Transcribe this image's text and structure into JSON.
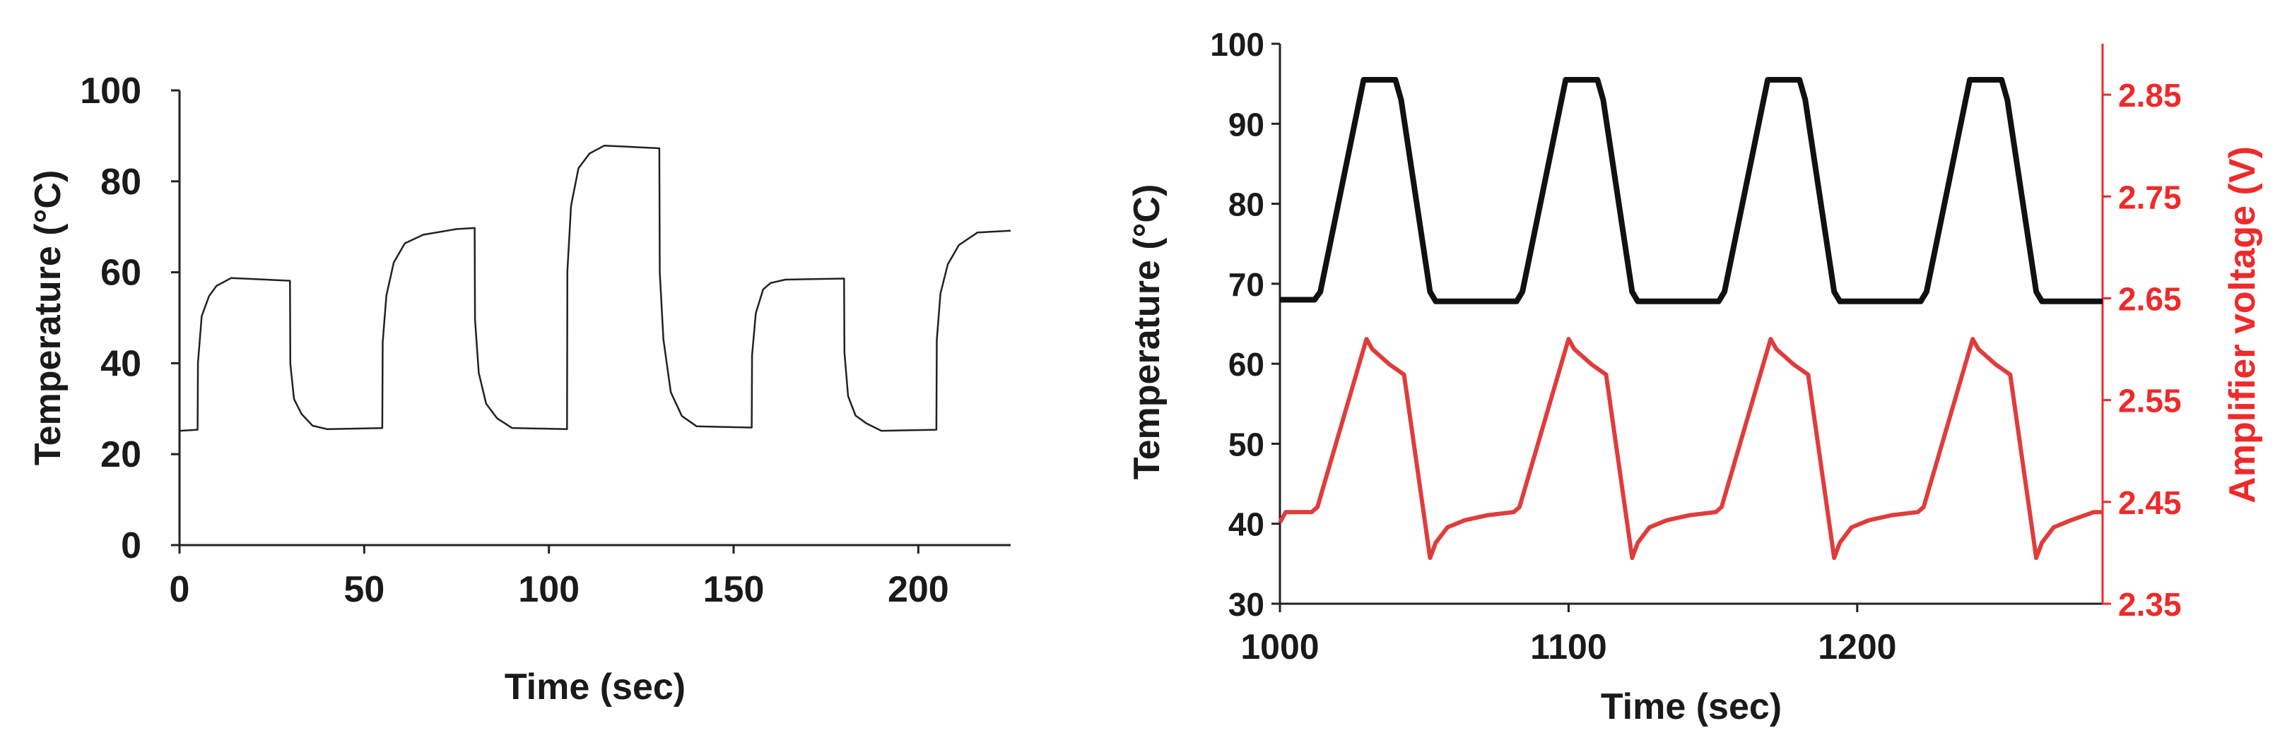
{
  "chart_data": [
    {
      "type": "line",
      "xlabel": "Time (sec)",
      "ylabel": "Temperature (°C)",
      "xlim": [
        0,
        225
      ],
      "ylim": [
        0,
        100
      ],
      "xticks": [
        "0",
        "50",
        "100",
        "150",
        "200"
      ],
      "yticks": [
        "0",
        "20",
        "40",
        "60",
        "80",
        "100"
      ],
      "line_color": "#222222",
      "series": [
        {
          "name": "Temperature",
          "x": [
            0,
            4.9,
            5,
            6,
            8,
            10,
            14,
            29.9,
            30,
            31,
            33,
            36,
            40,
            54.9,
            55,
            56,
            58,
            61,
            66,
            75,
            79.9,
            80,
            81,
            83,
            86,
            90,
            104.9,
            105,
            106,
            108,
            111,
            115,
            129.9,
            130,
            131,
            133,
            136,
            140,
            154.9,
            155,
            156,
            158,
            160,
            164,
            179.9,
            180,
            181,
            183,
            186,
            190,
            204.9,
            205,
            206,
            208,
            211,
            216,
            225
          ],
          "values": [
            25.5,
            25.5,
            40,
            50,
            55,
            57,
            58.5,
            58.5,
            40,
            32,
            28.5,
            26.5,
            25.5,
            25.5,
            45,
            55,
            62,
            66,
            68.5,
            69.5,
            69.5,
            50,
            38,
            31,
            27.5,
            26,
            25.5,
            60,
            75,
            83,
            86,
            87.5,
            87.5,
            60,
            45,
            34,
            28.5,
            26,
            25.5,
            42,
            51,
            56,
            58,
            58.5,
            58.5,
            42,
            33,
            28.5,
            26.5,
            25.5,
            25.5,
            45,
            55,
            62,
            66,
            68.5,
            69.5
          ]
        }
      ]
    },
    {
      "type": "line",
      "xlabel": "Time (sec)",
      "ylabel": "Temperature (°C)",
      "ylabel_right": "Amplifier voltage (V)",
      "xlim": [
        1000,
        1285
      ],
      "ylim": [
        30,
        100
      ],
      "ylim_right": [
        2.35,
        2.9
      ],
      "xticks": [
        "1000",
        "1100",
        "1200"
      ],
      "yticks": [
        "30",
        "40",
        "50",
        "60",
        "70",
        "80",
        "90",
        "100"
      ],
      "yticks_right": [
        "2.35",
        "2.45",
        "2.55",
        "2.65",
        "2.75",
        "2.85"
      ],
      "right_axis_color": "#ee2a2a",
      "series": [
        {
          "name": "Temperature",
          "axis": "left",
          "color": "#111111",
          "x": [
            1000,
            1012,
            1014,
            1027,
            1029,
            1040,
            1042,
            1052,
            1054,
            1082,
            1084,
            1097,
            1099,
            1110,
            1112,
            1122,
            1124,
            1152,
            1154,
            1167,
            1169,
            1180,
            1182,
            1192,
            1194,
            1222,
            1224,
            1237,
            1239,
            1250,
            1252,
            1262,
            1264,
            1285
          ],
          "values": [
            68,
            68,
            69,
            92,
            95.5,
            95.5,
            93,
            69,
            67.8,
            67.8,
            69,
            92,
            95.5,
            95.5,
            93,
            69,
            67.8,
            67.8,
            69,
            92,
            95.5,
            95.5,
            93,
            69,
            67.8,
            67.8,
            69,
            92,
            95.5,
            95.5,
            93,
            69,
            67.8,
            67.8
          ]
        },
        {
          "name": "Amplifier voltage",
          "axis": "right",
          "color": "#e03c3c",
          "x": [
            1000,
            1002,
            1011,
            1013,
            1030,
            1032,
            1038,
            1043,
            1052,
            1054,
            1058,
            1064,
            1072,
            1081,
            1083,
            1100,
            1102,
            1108,
            1113,
            1122,
            1124,
            1128,
            1134,
            1142,
            1151,
            1153,
            1170,
            1172,
            1178,
            1183,
            1192,
            1194,
            1198,
            1204,
            1212,
            1221,
            1223,
            1240,
            1242,
            1248,
            1253,
            1262,
            1264,
            1268,
            1274,
            1282,
            1285
          ],
          "values": [
            2.43,
            2.44,
            2.44,
            2.445,
            2.61,
            2.6,
            2.585,
            2.575,
            2.395,
            2.41,
            2.425,
            2.432,
            2.437,
            2.44,
            2.445,
            2.61,
            2.6,
            2.585,
            2.575,
            2.395,
            2.41,
            2.425,
            2.432,
            2.437,
            2.44,
            2.445,
            2.61,
            2.6,
            2.585,
            2.575,
            2.395,
            2.41,
            2.425,
            2.432,
            2.437,
            2.44,
            2.445,
            2.61,
            2.6,
            2.585,
            2.575,
            2.395,
            2.41,
            2.425,
            2.432,
            2.44,
            2.44
          ]
        }
      ]
    }
  ]
}
